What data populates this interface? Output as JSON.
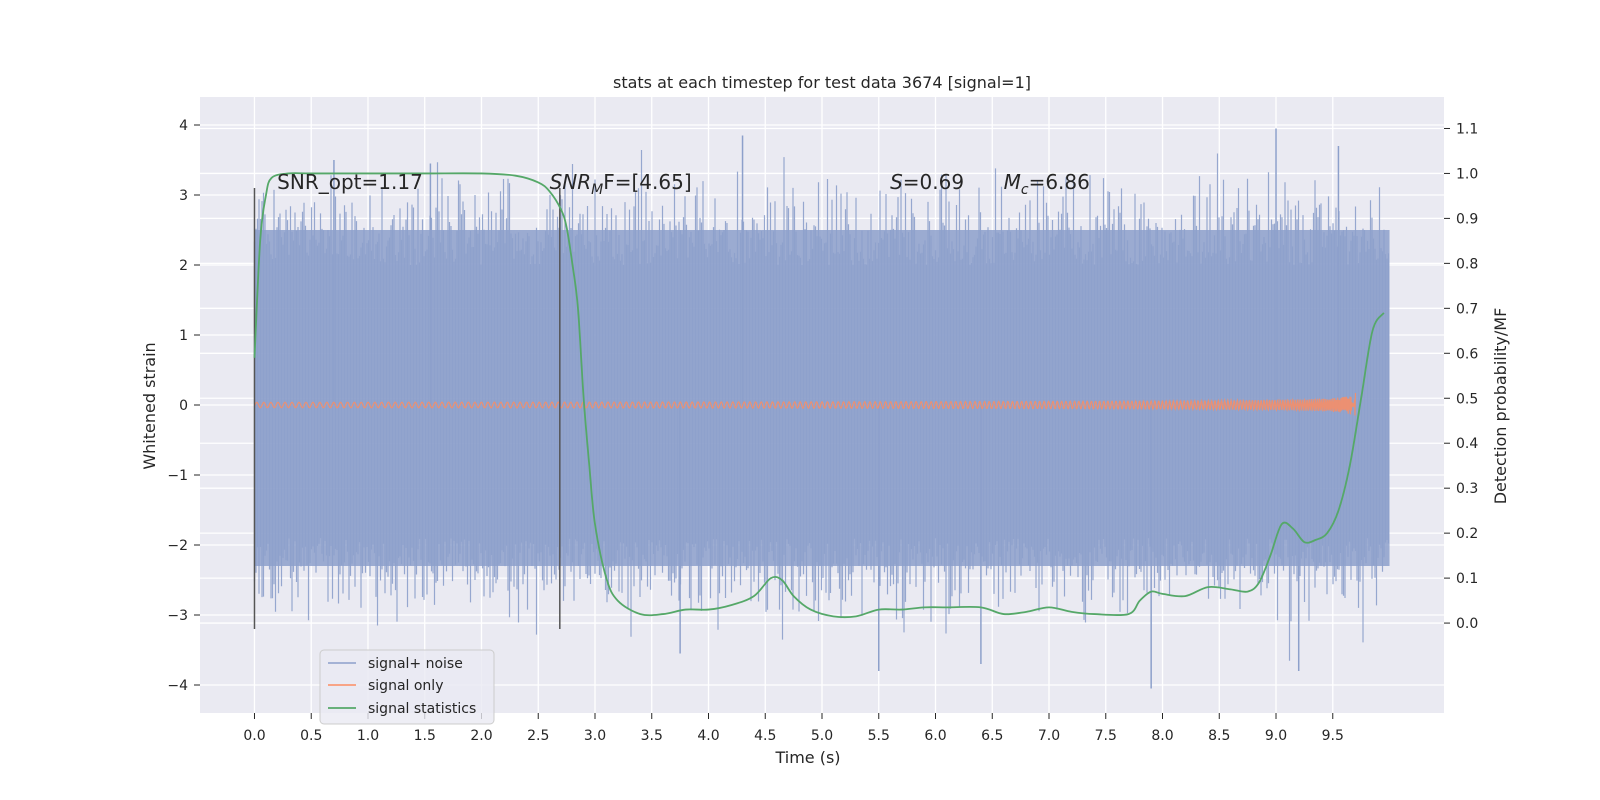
{
  "chart_data": {
    "type": "line",
    "title": "stats at each timestep for test data 3674 [signal=1]",
    "xlabel": "Time (s)",
    "ylabel": "Whitened strain",
    "y2label": "Detection probability/MF",
    "xlim": [
      -0.48,
      10.48
    ],
    "ylim": [
      -4.4,
      4.4
    ],
    "y2lim": [
      -0.2,
      1.17
    ],
    "x_ticks": [
      0.0,
      0.5,
      1.0,
      1.5,
      2.0,
      2.5,
      3.0,
      3.5,
      4.0,
      4.5,
      5.0,
      5.5,
      6.0,
      6.5,
      7.0,
      7.5,
      8.0,
      8.5,
      9.0,
      9.5
    ],
    "x_tick_labels": [
      "0.0",
      "0.5",
      "1.0",
      "1.5",
      "2.0",
      "2.5",
      "3.0",
      "3.5",
      "4.0",
      "4.5",
      "5.0",
      "5.5",
      "6.0",
      "6.5",
      "7.0",
      "7.5",
      "8.0",
      "8.5",
      "9.0",
      "9.5"
    ],
    "y_ticks": [
      4,
      3,
      2,
      1,
      0,
      -1,
      -2,
      -3,
      -4
    ],
    "y_tick_labels": [
      "4",
      "3",
      "2",
      "1",
      "0",
      "−1",
      "−2",
      "−3",
      "−4"
    ],
    "y2_ticks": [
      1.1,
      1.0,
      0.9,
      0.8,
      0.7,
      0.6,
      0.5,
      0.4,
      0.3,
      0.2,
      0.1,
      0.0
    ],
    "y2_tick_labels": [
      "1.1",
      "1.0",
      "0.9",
      "0.8",
      "0.7",
      "0.6",
      "0.5",
      "0.4",
      "0.3",
      "0.2",
      "0.1",
      "0.0"
    ],
    "grid": true,
    "legend_position": "lower-left",
    "series": [
      {
        "name": "signal+ noise",
        "color": "#8da0cb",
        "axis": "left",
        "style": "noise",
        "x_range": [
          0.0,
          10.0
        ],
        "envelope": [
          2.5,
          -2.3
        ]
      },
      {
        "name": "signal only",
        "color": "#fc8d62",
        "axis": "left",
        "style": "chirp",
        "x_range": [
          0.0,
          9.7
        ],
        "peak_amplitude": 0.2
      },
      {
        "name": "signal statistics",
        "color": "#55a868",
        "axis": "right",
        "x": [
          0.0,
          0.05,
          0.1,
          0.15,
          0.3,
          0.5,
          1.0,
          1.5,
          2.0,
          2.3,
          2.5,
          2.6,
          2.7,
          2.75,
          2.8,
          2.85,
          2.9,
          2.95,
          3.0,
          3.1,
          3.2,
          3.4,
          3.6,
          3.8,
          4.0,
          4.2,
          4.4,
          4.55,
          4.65,
          4.75,
          4.9,
          5.1,
          5.3,
          5.5,
          5.7,
          5.9,
          6.1,
          6.4,
          6.6,
          6.8,
          7.0,
          7.2,
          7.4,
          7.7,
          7.8,
          7.9,
          8.0,
          8.2,
          8.4,
          8.6,
          8.75,
          8.85,
          8.95,
          9.05,
          9.15,
          9.25,
          9.35,
          9.45,
          9.55,
          9.65,
          9.75,
          9.85,
          9.95
        ],
        "y": [
          0.59,
          0.85,
          0.95,
          0.99,
          1.0,
          1.0,
          1.0,
          1.0,
          1.0,
          0.995,
          0.98,
          0.96,
          0.92,
          0.88,
          0.8,
          0.7,
          0.5,
          0.35,
          0.22,
          0.1,
          0.05,
          0.02,
          0.02,
          0.03,
          0.03,
          0.04,
          0.06,
          0.1,
          0.095,
          0.06,
          0.03,
          0.015,
          0.015,
          0.03,
          0.03,
          0.035,
          0.035,
          0.035,
          0.02,
          0.025,
          0.035,
          0.025,
          0.02,
          0.02,
          0.05,
          0.07,
          0.065,
          0.06,
          0.08,
          0.075,
          0.07,
          0.09,
          0.15,
          0.22,
          0.21,
          0.18,
          0.185,
          0.2,
          0.25,
          0.35,
          0.5,
          0.65,
          0.69
        ]
      }
    ],
    "vertical_lines": [
      {
        "x": 0.0,
        "y_from": -3.2,
        "y_to": 3.1
      },
      {
        "x": 2.69,
        "y_from": -3.2,
        "y_to": 3.1
      }
    ],
    "annotations": [
      {
        "id": "snr-opt",
        "text": "SNR_opt=1.17",
        "x": 0.2,
        "y": 3.1
      },
      {
        "id": "snr-mf",
        "base": "SNR",
        "sub": "M",
        "rest": "F=[4.65]",
        "x": 2.6,
        "y": 3.1
      },
      {
        "id": "s-val",
        "base": "S",
        "rest": "=0.69",
        "x": 5.6,
        "y": 3.1
      },
      {
        "id": "mc-val",
        "base": "M",
        "sub": "c",
        "rest": "=6.86",
        "x": 6.6,
        "y": 3.1
      }
    ]
  }
}
